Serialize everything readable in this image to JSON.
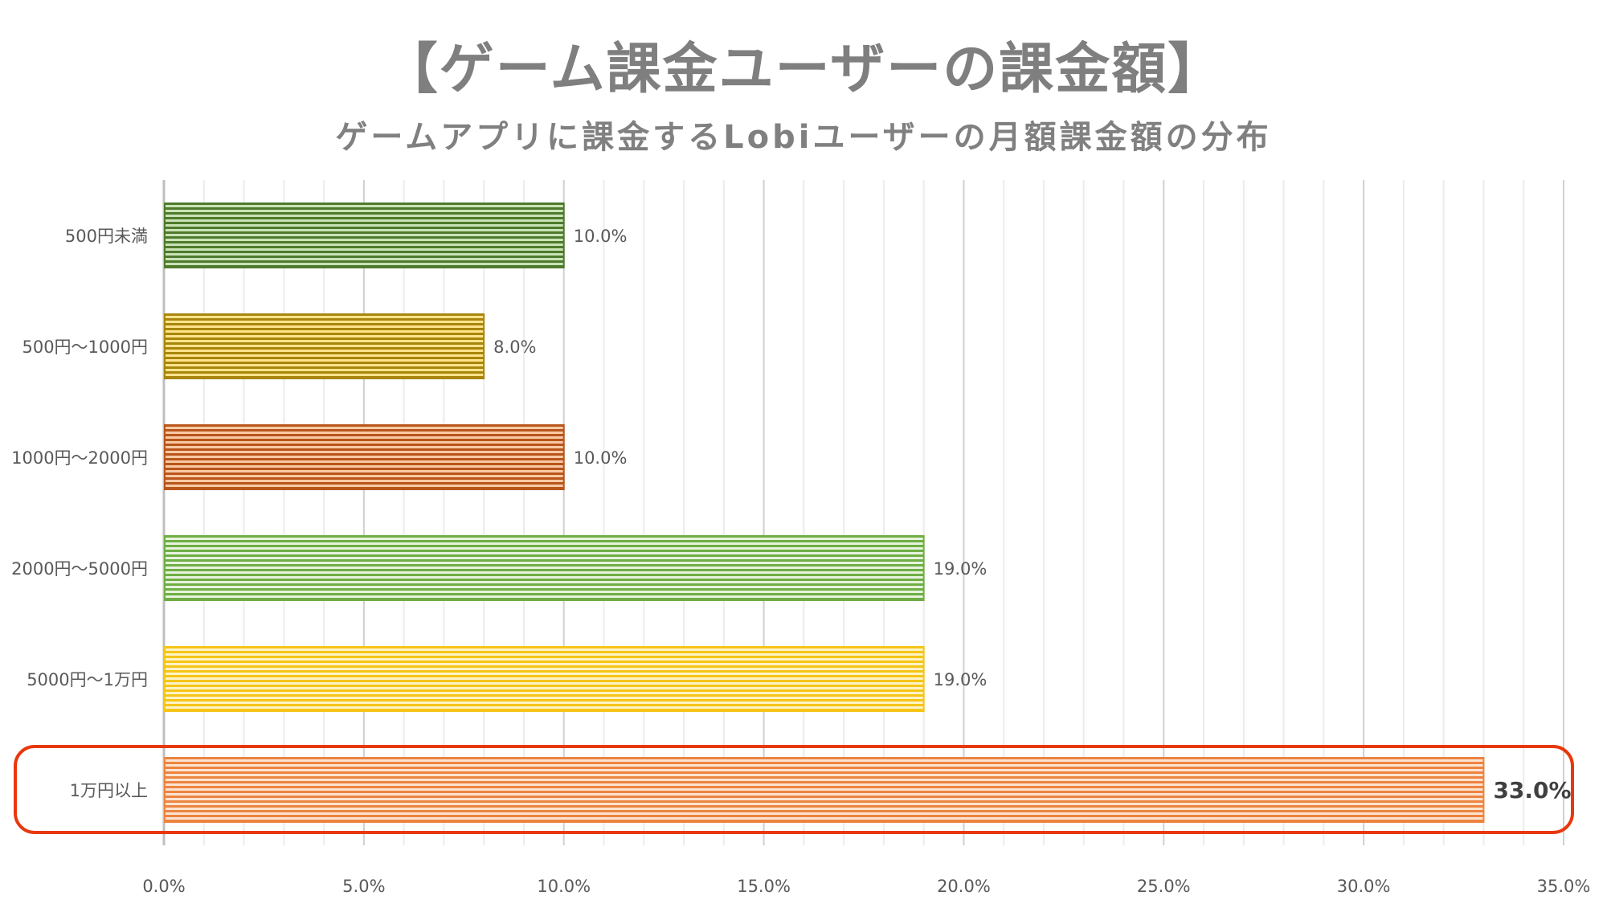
{
  "title": "【ゲーム課金ユーザーの課金額】",
  "subtitle": "ゲームアプリに課金するLobiユーザーの月額課金額の分布",
  "chart_data": {
    "type": "bar",
    "orientation": "horizontal",
    "title": "【ゲーム課金ユーザーの課金額】",
    "subtitle": "ゲームアプリに課金するLobiユーザーの月額課金額の分布",
    "categories": [
      "500円未満",
      "500円～1000円",
      "1000円～2000円",
      "2000円～5000円",
      "5000円～1万円",
      "1万円以上"
    ],
    "values": [
      10.0,
      8.0,
      10.0,
      19.0,
      19.0,
      33.0
    ],
    "data_labels": [
      "10.0%",
      "8.0%",
      "10.0%",
      "19.0%",
      "19.0%",
      "33.0%"
    ],
    "colors": [
      {
        "dark": "#4f7a2e",
        "light": "#c9e3b5"
      },
      {
        "dark": "#a8860c",
        "light": "#ffe38a"
      },
      {
        "dark": "#b8561c",
        "light": "#f9c9a4"
      },
      {
        "dark": "#6fae45",
        "light": "#e6f3dc"
      },
      {
        "dark": "#f5c518",
        "light": "#fff3c4"
      },
      {
        "dark": "#ec8441",
        "light": "#fde3cf"
      }
    ],
    "highlight_index": 5,
    "highlight_color": "#e8380d",
    "xlim": [
      0,
      35
    ],
    "xticks": [
      "0.0%",
      "5.0%",
      "10.0%",
      "15.0%",
      "20.0%",
      "25.0%",
      "30.0%",
      "35.0%"
    ],
    "xlabel": "",
    "ylabel": "",
    "grid": true
  }
}
